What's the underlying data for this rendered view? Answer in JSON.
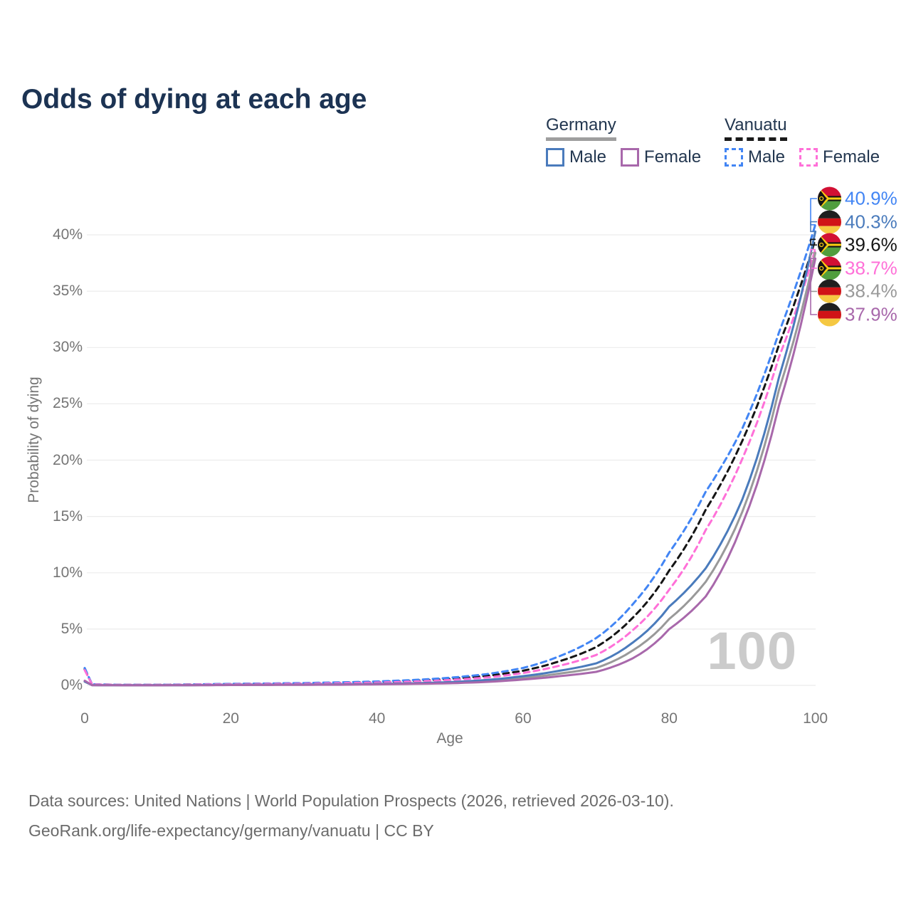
{
  "title": "Odds of dying at each age",
  "legend": {
    "groups": [
      {
        "name": "Germany",
        "underline_style": "solid",
        "underline_color": "#9e9e9e",
        "items": [
          {
            "label": "Male",
            "color": "#4a7bbc",
            "style": "solid"
          },
          {
            "label": "Female",
            "color": "#b777b3",
            "style": "solid"
          }
        ]
      },
      {
        "name": "Vanuatu",
        "underline_style": "dashed",
        "underline_color": "#1a1a1a",
        "items": [
          {
            "label": "Male",
            "color": "#5c9cf5",
            "style": "dashed"
          },
          {
            "label": "Female",
            "color": "#ff85e8",
            "style": "dashed"
          }
        ]
      }
    ]
  },
  "chart_data": {
    "type": "line",
    "title": "Odds of dying at each age",
    "xlabel": "Age",
    "ylabel": "Probability of dying",
    "xlim": [
      0,
      100
    ],
    "ylim_percent": [
      0,
      43
    ],
    "x_ticks": [
      0,
      20,
      40,
      60,
      80,
      100
    ],
    "y_ticks_percent": [
      0,
      5,
      10,
      15,
      20,
      25,
      30,
      35,
      40
    ],
    "y_tick_labels": [
      "0%",
      "5%",
      "10%",
      "15%",
      "20%",
      "25%",
      "30%",
      "35%",
      "40%"
    ],
    "grid": "horizontal",
    "legend_position": "top-right",
    "series": [
      {
        "key": "vanuatu-all",
        "name": "Vanuatu (all)",
        "country": "Vanuatu",
        "color": "#151515",
        "dash": true,
        "points": [
          [
            0,
            1.45
          ],
          [
            1,
            0.09
          ],
          [
            5,
            0.05
          ],
          [
            10,
            0.05
          ],
          [
            15,
            0.08
          ],
          [
            20,
            0.12
          ],
          [
            25,
            0.15
          ],
          [
            30,
            0.18
          ],
          [
            35,
            0.23
          ],
          [
            40,
            0.3
          ],
          [
            45,
            0.41
          ],
          [
            50,
            0.58
          ],
          [
            55,
            0.85
          ],
          [
            60,
            1.3
          ],
          [
            65,
            2.15
          ],
          [
            70,
            3.4
          ],
          [
            75,
            6.0
          ],
          [
            80,
            10.2
          ],
          [
            85,
            15.6
          ],
          [
            90,
            21.7
          ],
          [
            95,
            30.2
          ],
          [
            100,
            39.6
          ]
        ]
      },
      {
        "key": "vanuatu-male",
        "name": "Vanuatu Male",
        "country": "Vanuatu",
        "color": "#4285f4",
        "dash": true,
        "points": [
          [
            0,
            1.55
          ],
          [
            1,
            0.1
          ],
          [
            5,
            0.055
          ],
          [
            10,
            0.055
          ],
          [
            15,
            0.09
          ],
          [
            20,
            0.14
          ],
          [
            25,
            0.17
          ],
          [
            30,
            0.21
          ],
          [
            35,
            0.27
          ],
          [
            40,
            0.35
          ],
          [
            45,
            0.48
          ],
          [
            50,
            0.68
          ],
          [
            55,
            1.0
          ],
          [
            60,
            1.55
          ],
          [
            65,
            2.6
          ],
          [
            70,
            4.2
          ],
          [
            75,
            7.2
          ],
          [
            80,
            11.8
          ],
          [
            85,
            17.2
          ],
          [
            90,
            22.8
          ],
          [
            95,
            31.3
          ],
          [
            100,
            40.9
          ]
        ]
      },
      {
        "key": "vanuatu-female",
        "name": "Vanuatu Female",
        "country": "Vanuatu",
        "color": "#ff70d8",
        "dash": true,
        "points": [
          [
            0,
            1.35
          ],
          [
            1,
            0.085
          ],
          [
            5,
            0.045
          ],
          [
            10,
            0.045
          ],
          [
            15,
            0.07
          ],
          [
            20,
            0.1
          ],
          [
            25,
            0.13
          ],
          [
            30,
            0.15
          ],
          [
            35,
            0.19
          ],
          [
            40,
            0.25
          ],
          [
            45,
            0.34
          ],
          [
            50,
            0.48
          ],
          [
            55,
            0.7
          ],
          [
            60,
            1.1
          ],
          [
            65,
            1.75
          ],
          [
            70,
            2.7
          ],
          [
            75,
            4.9
          ],
          [
            80,
            8.5
          ],
          [
            85,
            13.8
          ],
          [
            90,
            20.1
          ],
          [
            95,
            29.1
          ],
          [
            100,
            38.7
          ]
        ]
      },
      {
        "key": "germany-all",
        "name": "Germany (all)",
        "country": "Germany",
        "color": "#999999",
        "dash": false,
        "points": [
          [
            0,
            0.33
          ],
          [
            1,
            0.023
          ],
          [
            5,
            0.009
          ],
          [
            10,
            0.009
          ],
          [
            15,
            0.02
          ],
          [
            20,
            0.04
          ],
          [
            25,
            0.05
          ],
          [
            30,
            0.06
          ],
          [
            35,
            0.08
          ],
          [
            40,
            0.11
          ],
          [
            45,
            0.16
          ],
          [
            50,
            0.24
          ],
          [
            55,
            0.39
          ],
          [
            60,
            0.66
          ],
          [
            65,
            1.05
          ],
          [
            70,
            1.55
          ],
          [
            75,
            3.1
          ],
          [
            80,
            5.9
          ],
          [
            85,
            9.2
          ],
          [
            90,
            15.4
          ],
          [
            95,
            26.2
          ],
          [
            100,
            38.4
          ]
        ]
      },
      {
        "key": "germany-male",
        "name": "Germany Male",
        "country": "Germany",
        "color": "#4a7bbc",
        "dash": false,
        "points": [
          [
            0,
            0.35
          ],
          [
            1,
            0.025
          ],
          [
            5,
            0.01
          ],
          [
            10,
            0.01
          ],
          [
            15,
            0.025
          ],
          [
            20,
            0.05
          ],
          [
            25,
            0.06
          ],
          [
            30,
            0.07
          ],
          [
            35,
            0.09
          ],
          [
            40,
            0.13
          ],
          [
            45,
            0.19
          ],
          [
            50,
            0.29
          ],
          [
            55,
            0.48
          ],
          [
            60,
            0.82
          ],
          [
            65,
            1.3
          ],
          [
            70,
            1.95
          ],
          [
            75,
            3.8
          ],
          [
            80,
            7.0
          ],
          [
            85,
            10.4
          ],
          [
            90,
            16.5
          ],
          [
            95,
            27.3
          ],
          [
            100,
            40.3
          ]
        ]
      },
      {
        "key": "germany-female",
        "name": "Germany Female",
        "country": "Germany",
        "color": "#a868ab",
        "dash": false,
        "points": [
          [
            0,
            0.42
          ],
          [
            1,
            0.021
          ],
          [
            5,
            0.008
          ],
          [
            10,
            0.008
          ],
          [
            15,
            0.016
          ],
          [
            20,
            0.03
          ],
          [
            25,
            0.04
          ],
          [
            30,
            0.05
          ],
          [
            35,
            0.06
          ],
          [
            40,
            0.09
          ],
          [
            45,
            0.13
          ],
          [
            50,
            0.19
          ],
          [
            55,
            0.31
          ],
          [
            60,
            0.52
          ],
          [
            65,
            0.82
          ],
          [
            70,
            1.2
          ],
          [
            75,
            2.4
          ],
          [
            80,
            5.0
          ],
          [
            85,
            7.9
          ],
          [
            90,
            14.3
          ],
          [
            95,
            24.8
          ],
          [
            100,
            37.9
          ]
        ]
      }
    ],
    "end_labels": [
      {
        "series": "vanuatu-male",
        "text": "40.9%",
        "color": "#4285f4",
        "flag": "vanuatu-flag-icon"
      },
      {
        "series": "germany-male",
        "text": "40.3%",
        "color": "#4a7bbc",
        "flag": "germany-flag-icon"
      },
      {
        "series": "vanuatu-all",
        "text": "39.6%",
        "color": "#151515",
        "flag": "vanuatu-flag-icon"
      },
      {
        "series": "vanuatu-female",
        "text": "38.7%",
        "color": "#ff70d8",
        "flag": "vanuatu-flag-icon"
      },
      {
        "series": "germany-all",
        "text": "38.4%",
        "color": "#999999",
        "flag": "germany-flag-icon"
      },
      {
        "series": "germany-female",
        "text": "37.9%",
        "color": "#a868ab",
        "flag": "germany-flag-icon"
      }
    ]
  },
  "watermark": "100",
  "footer": {
    "line1": "Data sources: United Nations | World Population Prospects (2026, retrieved 2026-03-10).",
    "line2": "GeoRank.org/life-expectancy/germany/vanuatu | CC BY"
  },
  "colors": {
    "title": "#1c3353",
    "legend_text": "#22364f",
    "axis_text": "#757575",
    "gridline": "#ececec",
    "watermark": "#cbcbcb",
    "footer_text": "#6b6b6b"
  },
  "flag_colors": {
    "germany": {
      "black": "#1f1f1f",
      "red": "#d01317",
      "gold": "#f5c842"
    },
    "vanuatu": {
      "red": "#d21034",
      "green": "#519e3e",
      "black": "#141414",
      "yellow": "#fdce12"
    }
  }
}
